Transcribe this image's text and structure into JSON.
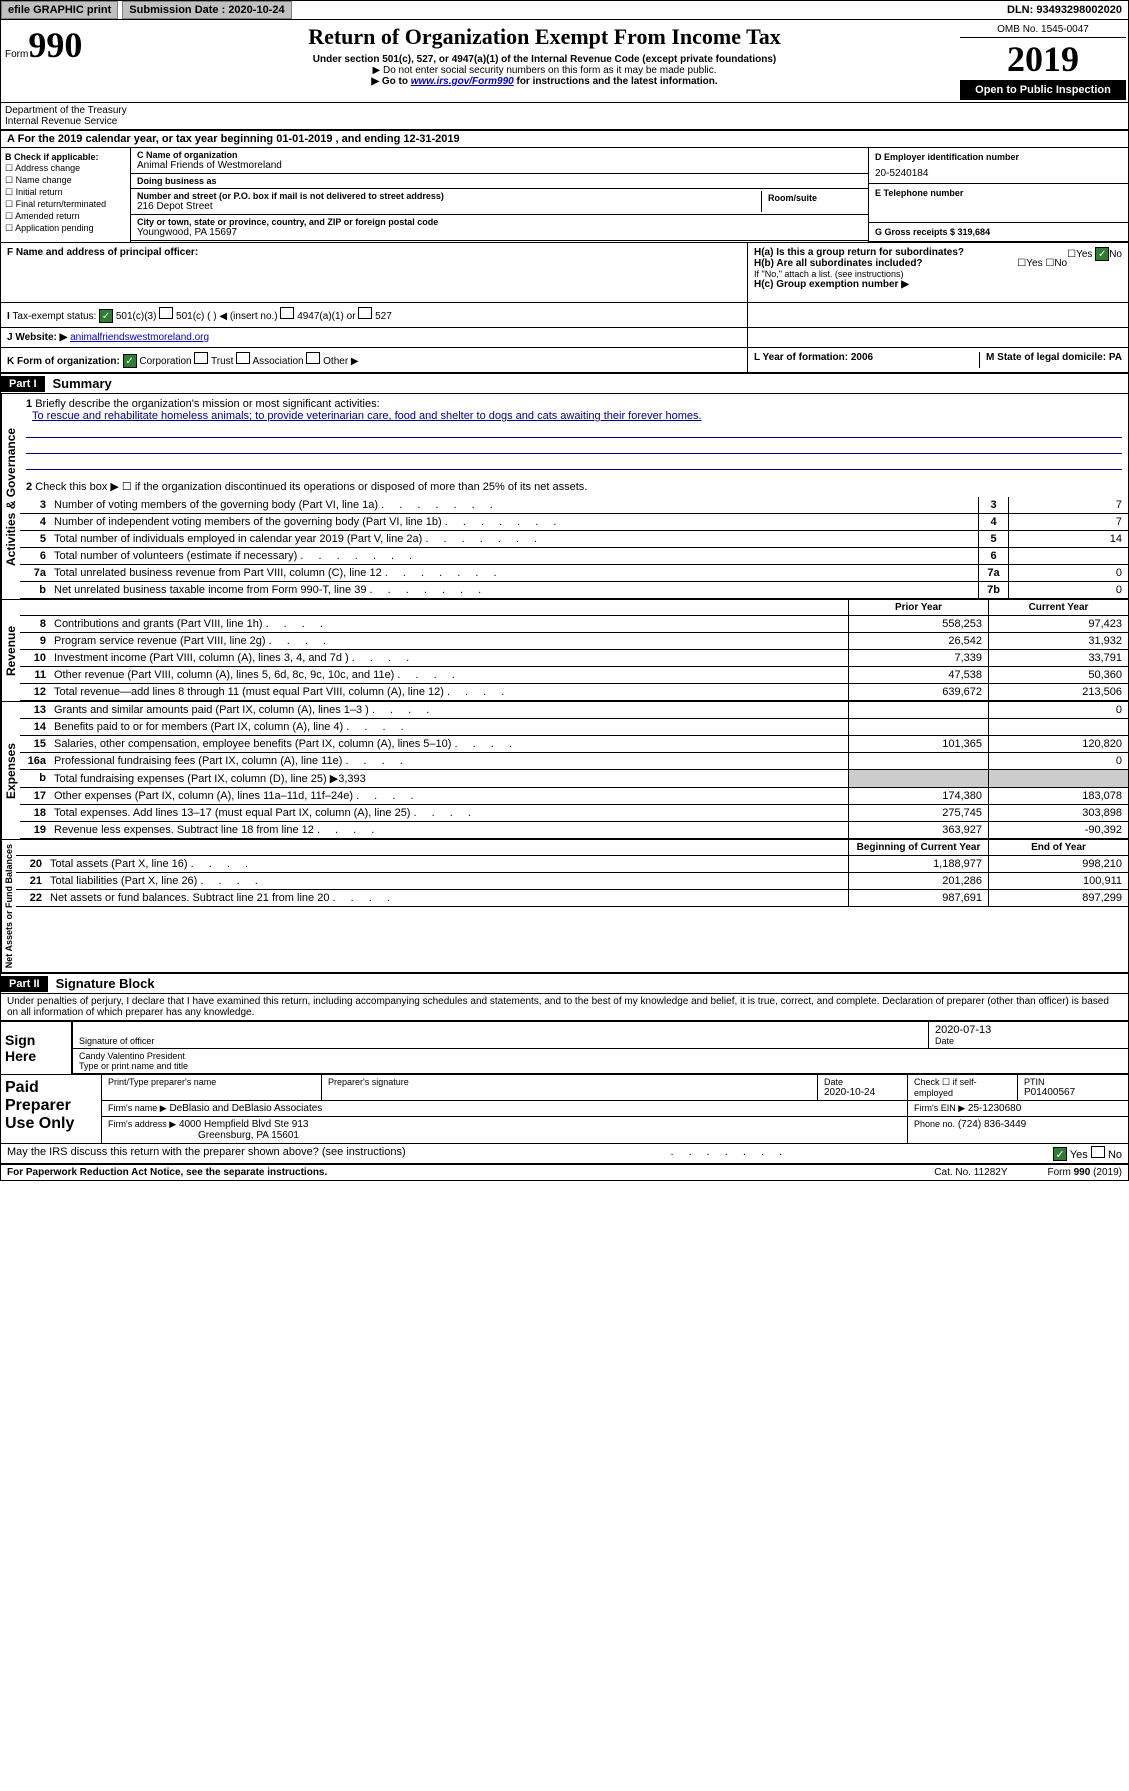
{
  "topbar": {
    "efile": "efile GRAPHIC print",
    "sub_label": "Submission Date : 2020-10-24",
    "dln": "DLN: 93493298002020"
  },
  "header": {
    "form_prefix": "Form",
    "form_num": "990",
    "title": "Return of Organization Exempt From Income Tax",
    "sub1": "Under section 501(c), 527, or 4947(a)(1) of the Internal Revenue Code (except private foundations)",
    "sub2": "▶ Do not enter social security numbers on this form as it may be made public.",
    "sub3_pre": "▶ Go to ",
    "sub3_link": "www.irs.gov/Form990",
    "sub3_post": " for instructions and the latest information.",
    "omb": "OMB No. 1545-0047",
    "year": "2019",
    "openpub": "Open to Public Inspection",
    "dept": "Department of the Treasury Internal Revenue Service"
  },
  "period": "For the 2019 calendar year, or tax year beginning 01-01-2019    , and ending 12-31-2019",
  "boxB": {
    "hdr": "B Check if applicable:",
    "items": [
      "Address change",
      "Name change",
      "Initial return",
      "Final return/terminated",
      "Amended return",
      "Application pending"
    ]
  },
  "boxC": {
    "name_label": "C Name of organization",
    "name": "Animal Friends of Westmoreland",
    "dba_label": "Doing business as",
    "addr_label": "Number and street (or P.O. box if mail is not delivered to street address)",
    "room_label": "Room/suite",
    "addr": "216 Depot Street",
    "city_label": "City or town, state or province, country, and ZIP or foreign postal code",
    "city": "Youngwood, PA  15697"
  },
  "boxD": {
    "label": "D Employer identification number",
    "val": "20-5240184"
  },
  "boxE": {
    "label": "E Telephone number",
    "val": ""
  },
  "boxG": {
    "label": "G Gross receipts $ 319,684"
  },
  "boxF": {
    "label": "F  Name and address of principal officer:"
  },
  "boxH": {
    "a": "H(a)  Is this a group return for subordinates?",
    "b": "H(b)  Are all subordinates included?",
    "b_note": "If \"No,\" attach a list. (see instructions)",
    "c": "H(c)  Group exemption number ▶"
  },
  "boxI": {
    "label": "Tax-exempt status:",
    "opts": [
      "501(c)(3)",
      "501(c) (  ) ◀ (insert no.)",
      "4947(a)(1) or",
      "527"
    ]
  },
  "boxJ": {
    "label": "Website: ▶",
    "val": "animalfriendswestmoreland.org"
  },
  "boxK": {
    "label": "K Form of organization:",
    "opts": [
      "Corporation",
      "Trust",
      "Association",
      "Other ▶"
    ]
  },
  "boxL": {
    "label": "L Year of formation: 2006"
  },
  "boxM": {
    "label": "M State of legal domicile: PA"
  },
  "part1": {
    "hdr": "Part I",
    "title": "Summary"
  },
  "gov": {
    "vtext": "Activities & Governance",
    "q1": "Briefly describe the organization's mission or most significant activities:",
    "mission": "To rescue and rehabilitate homeless animals; to provide veterinarian care, food and shelter to dogs and cats awaiting their forever homes.",
    "q2": "Check this box ▶ ☐  if the organization discontinued its operations or disposed of more than 25% of its net assets.",
    "rows": [
      {
        "n": "3",
        "t": "Number of voting members of the governing body (Part VI, line 1a)",
        "v": "7"
      },
      {
        "n": "4",
        "t": "Number of independent voting members of the governing body (Part VI, line 1b)",
        "v": "7"
      },
      {
        "n": "5",
        "t": "Total number of individuals employed in calendar year 2019 (Part V, line 2a)",
        "v": "14"
      },
      {
        "n": "6",
        "t": "Total number of volunteers (estimate if necessary)",
        "v": ""
      },
      {
        "n": "7a",
        "t": "Total unrelated business revenue from Part VIII, column (C), line 12",
        "v": "0"
      },
      {
        "n": "b",
        "t": "Net unrelated business taxable income from Form 990-T, line 39",
        "v": "0",
        "box": "7b"
      }
    ]
  },
  "rev": {
    "vtext": "Revenue",
    "hdr_prior": "Prior Year",
    "hdr_curr": "Current Year",
    "rows": [
      {
        "n": "8",
        "t": "Contributions and grants (Part VIII, line 1h)",
        "p": "558,253",
        "c": "97,423"
      },
      {
        "n": "9",
        "t": "Program service revenue (Part VIII, line 2g)",
        "p": "26,542",
        "c": "31,932"
      },
      {
        "n": "10",
        "t": "Investment income (Part VIII, column (A), lines 3, 4, and 7d )",
        "p": "7,339",
        "c": "33,791"
      },
      {
        "n": "11",
        "t": "Other revenue (Part VIII, column (A), lines 5, 6d, 8c, 9c, 10c, and 11e)",
        "p": "47,538",
        "c": "50,360"
      },
      {
        "n": "12",
        "t": "Total revenue—add lines 8 through 11 (must equal Part VIII, column (A), line 12)",
        "p": "639,672",
        "c": "213,506"
      }
    ]
  },
  "exp": {
    "vtext": "Expenses",
    "rows": [
      {
        "n": "13",
        "t": "Grants and similar amounts paid (Part IX, column (A), lines 1–3 )",
        "p": "",
        "c": "0"
      },
      {
        "n": "14",
        "t": "Benefits paid to or for members (Part IX, column (A), line 4)",
        "p": "",
        "c": ""
      },
      {
        "n": "15",
        "t": "Salaries, other compensation, employee benefits (Part IX, column (A), lines 5–10)",
        "p": "101,365",
        "c": "120,820"
      },
      {
        "n": "16a",
        "t": "Professional fundraising fees (Part IX, column (A), line 11e)",
        "p": "",
        "c": "0"
      },
      {
        "n": "b",
        "t": "Total fundraising expenses (Part IX, column (D), line 25) ▶3,393",
        "p": "—",
        "c": "—"
      },
      {
        "n": "17",
        "t": "Other expenses (Part IX, column (A), lines 11a–11d, 11f–24e)",
        "p": "174,380",
        "c": "183,078"
      },
      {
        "n": "18",
        "t": "Total expenses. Add lines 13–17 (must equal Part IX, column (A), line 25)",
        "p": "275,745",
        "c": "303,898"
      },
      {
        "n": "19",
        "t": "Revenue less expenses. Subtract line 18 from line 12",
        "p": "363,927",
        "c": "-90,392"
      }
    ]
  },
  "net": {
    "vtext": "Net Assets or Fund Balances",
    "hdr_beg": "Beginning of Current Year",
    "hdr_end": "End of Year",
    "rows": [
      {
        "n": "20",
        "t": "Total assets (Part X, line 16)",
        "p": "1,188,977",
        "c": "998,210"
      },
      {
        "n": "21",
        "t": "Total liabilities (Part X, line 26)",
        "p": "201,286",
        "c": "100,911"
      },
      {
        "n": "22",
        "t": "Net assets or fund balances. Subtract line 21 from line 20",
        "p": "987,691",
        "c": "897,299"
      }
    ]
  },
  "part2": {
    "hdr": "Part II",
    "title": "Signature Block"
  },
  "perjury": "Under penalties of perjury, I declare that I have examined this return, including accompanying schedules and statements, and to the best of my knowledge and belief, it is true, correct, and complete. Declaration of preparer (other than officer) is based on all information of which preparer has any knowledge.",
  "sign": {
    "here": "Sign Here",
    "sig_label": "Signature of officer",
    "date": "2020-07-13",
    "date_label": "Date",
    "name": "Candy Valentino  President",
    "name_label": "Type or print name and title"
  },
  "paid": {
    "title": "Paid Preparer Use Only",
    "prep_name_label": "Print/Type preparer's name",
    "prep_sig_label": "Preparer's signature",
    "date_label": "Date",
    "date": "2020-10-24",
    "check_label": "Check ☐ if self-employed",
    "ptin_label": "PTIN",
    "ptin": "P01400567",
    "firm_name_label": "Firm's name   ▶",
    "firm_name": "DeBlasio and DeBlasio Associates",
    "firm_ein_label": "Firm's EIN ▶",
    "firm_ein": "25-1230680",
    "firm_addr_label": "Firm's address ▶",
    "firm_addr": "4000 Hempfield Blvd Ste 913",
    "firm_city": "Greensburg, PA  15601",
    "phone_label": "Phone no.",
    "phone": "(724) 836-3449"
  },
  "discuss": "May the IRS discuss this return with the preparer shown above? (see instructions)",
  "footer": {
    "left": "For Paperwork Reduction Act Notice, see the separate instructions.",
    "mid": "Cat. No. 11282Y",
    "right": "Form 990 (2019)"
  },
  "yesno": {
    "yes": "Yes",
    "no": "No"
  }
}
